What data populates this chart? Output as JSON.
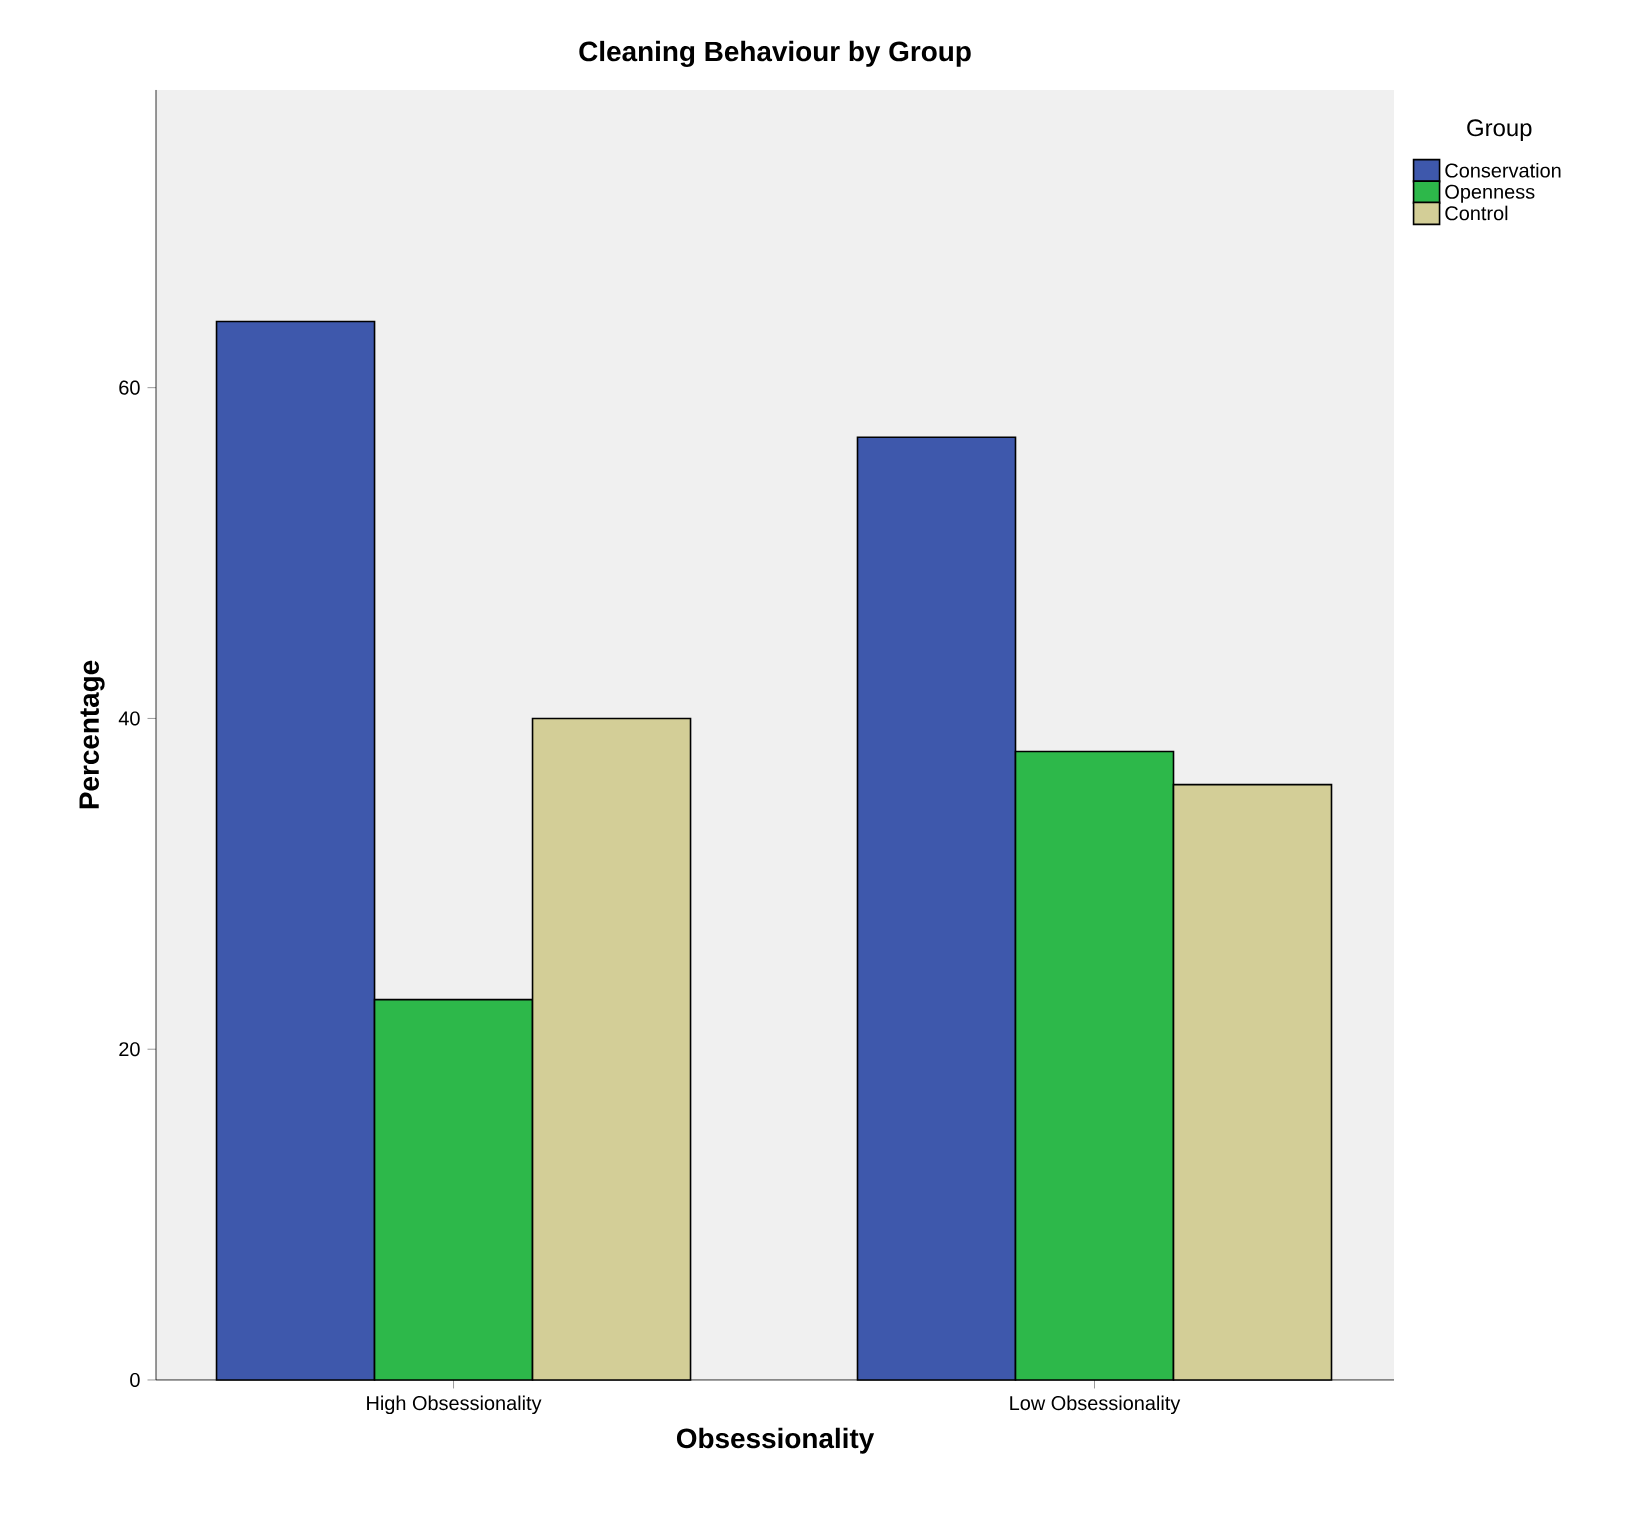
{
  "chart_data": {
    "type": "bar",
    "title": "Cleaning Behaviour by Group",
    "xlabel": "Obsessionality",
    "ylabel": "Percentage",
    "legend_title": "Group",
    "categories": [
      "High Obsessionality",
      "Low Obsessionality"
    ],
    "series": [
      {
        "name": "Conservation",
        "color": "#3e58ac",
        "values": [
          64,
          57
        ]
      },
      {
        "name": "Openness",
        "color": "#2db84a",
        "values": [
          23,
          38
        ]
      },
      {
        "name": "Control",
        "color": "#d3ce97",
        "values": [
          40,
          36
        ]
      }
    ],
    "ylim": [
      0,
      78
    ],
    "yticks": [
      0,
      20,
      40,
      60
    ],
    "grid": false,
    "legend": "top right"
  }
}
